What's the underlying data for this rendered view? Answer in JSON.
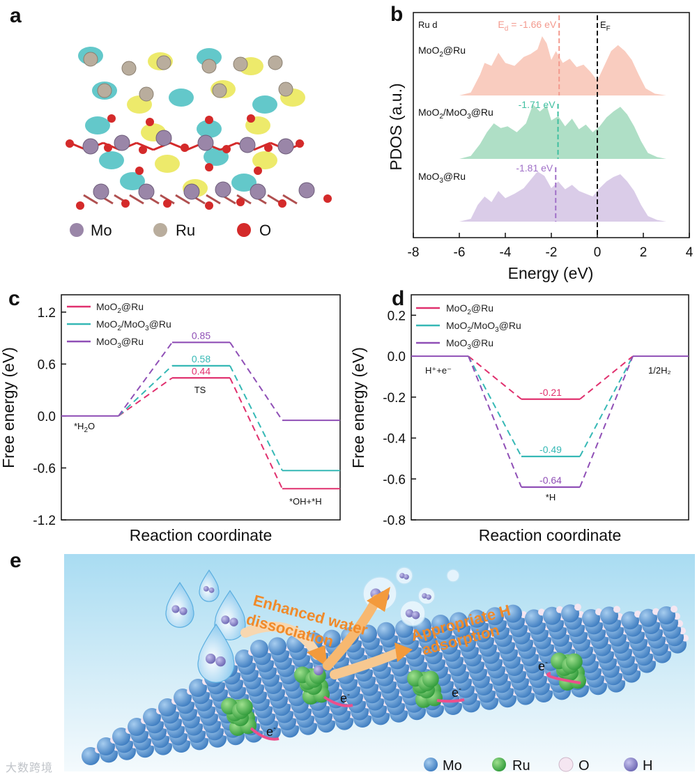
{
  "panel_labels": {
    "a": "a",
    "b": "b",
    "c": "c",
    "d": "d",
    "e": "e"
  },
  "panel_a": {
    "legend": [
      {
        "label": "Mo",
        "color": "#9a86a8"
      },
      {
        "label": "Ru",
        "color": "#b9ad9d"
      },
      {
        "label": "O",
        "color": "#d42a2a"
      }
    ]
  },
  "colors": {
    "moo2_ru": "#e0306e",
    "mixed": "#35b8b5",
    "moo3_ru": "#8f4fb6",
    "moo2_fill": "#f8c7b8",
    "mixed_fill": "#a6dcc0",
    "moo3_fill": "#d6c6e6"
  },
  "panel_e": {
    "text_water": "Enhanced water dissociation",
    "text_water_line1": "Enhanced water",
    "text_water_line2": "dissociation",
    "text_h_line1": "Appropriate H",
    "text_h_line2": "adsorption",
    "electron": "e",
    "legend": [
      {
        "label": "Mo",
        "color": "#4f8fd0"
      },
      {
        "label": "Ru",
        "color": "#3eb34f"
      },
      {
        "label": "O",
        "color": "#f3dfee"
      },
      {
        "label": "H",
        "color": "#8a86c8"
      }
    ]
  },
  "watermark": "大数跨境",
  "chart_data": [
    {
      "id": "b",
      "type": "area",
      "xlabel": "Energy (eV)",
      "ylabel": "PDOS (a.u.)",
      "xlim": [
        -8,
        4
      ],
      "xticks": [
        "-8",
        "-6",
        "-4",
        "-2",
        "0",
        "2",
        "4"
      ],
      "corner_label": "Ru d",
      "fermi_label": "EF",
      "series": [
        {
          "name": "MoO2@Ru",
          "d_band_center": -1.66,
          "center_label": "Ed = -1.66 eV",
          "x": [
            -6,
            -5.5,
            -5.1,
            -4.9,
            -4.6,
            -4.3,
            -4.0,
            -3.6,
            -3.2,
            -2.9,
            -2.6,
            -2.4,
            -2.2,
            -2.0,
            -1.8,
            -1.5,
            -1.2,
            -0.9,
            -0.6,
            -0.3,
            0.0,
            0.3,
            0.6,
            0.9,
            1.2,
            1.5,
            1.8,
            2.1,
            2.5,
            3.0
          ],
          "y": [
            0.0,
            0.05,
            0.35,
            0.55,
            0.5,
            0.72,
            0.55,
            0.5,
            0.65,
            0.7,
            0.78,
            1.0,
            0.88,
            0.6,
            0.75,
            0.55,
            0.62,
            0.48,
            0.52,
            0.4,
            0.25,
            0.5,
            0.75,
            0.85,
            0.75,
            0.6,
            0.35,
            0.12,
            0.03,
            0.0
          ]
        },
        {
          "name": "MoO2/MoO3@Ru",
          "d_band_center": -1.71,
          "center_label": "-1.71 eV",
          "x": [
            -6,
            -5.5,
            -5.1,
            -4.8,
            -4.5,
            -4.2,
            -3.9,
            -3.5,
            -3.1,
            -2.8,
            -2.5,
            -2.2,
            -2.0,
            -1.7,
            -1.4,
            -1.1,
            -0.8,
            -0.5,
            -0.2,
            0.1,
            0.4,
            0.7,
            1.0,
            1.3,
            1.6,
            1.9,
            2.2,
            2.6,
            3.0
          ],
          "y": [
            0.0,
            0.05,
            0.25,
            0.45,
            0.6,
            0.52,
            0.55,
            0.45,
            0.6,
            0.92,
            0.8,
            0.9,
            0.65,
            0.72,
            0.55,
            0.68,
            0.5,
            0.58,
            0.45,
            0.55,
            0.7,
            0.8,
            0.88,
            0.75,
            0.55,
            0.3,
            0.1,
            0.03,
            0.0
          ]
        },
        {
          "name": "MoO3@Ru",
          "d_band_center": -1.81,
          "center_label": "-1.81 eV",
          "x": [
            -6,
            -5.5,
            -5.2,
            -4.9,
            -4.6,
            -4.3,
            -4.0,
            -3.6,
            -3.2,
            -2.9,
            -2.6,
            -2.3,
            -2.0,
            -1.7,
            -1.4,
            -1.1,
            -0.8,
            -0.5,
            -0.2,
            0.1,
            0.4,
            0.7,
            1.0,
            1.3,
            1.6,
            1.9,
            2.2,
            2.6,
            3.0
          ],
          "y": [
            0.0,
            0.05,
            0.3,
            0.45,
            0.35,
            0.55,
            0.42,
            0.5,
            0.6,
            0.75,
            0.9,
            0.82,
            0.6,
            0.72,
            0.58,
            0.66,
            0.55,
            0.5,
            0.45,
            0.6,
            0.72,
            0.8,
            0.85,
            0.72,
            0.55,
            0.3,
            0.1,
            0.03,
            0.0
          ]
        }
      ]
    },
    {
      "id": "c",
      "type": "line",
      "xlabel": "Reaction coordinate",
      "ylabel": "Free energy (eV)",
      "ylim": [
        -1.2,
        1.4
      ],
      "yticks": [
        "1.2",
        "0.6",
        "0.0",
        "-0.6",
        "-1.2"
      ],
      "state_labels": {
        "initial": "*H2O",
        "ts": "TS",
        "final": "*OH+*H"
      },
      "series": [
        {
          "name": "MoO2@Ru",
          "values": [
            0.0,
            0.44,
            -0.84
          ],
          "label": "0.44"
        },
        {
          "name": "MoO2/MoO3@Ru",
          "values": [
            0.0,
            0.58,
            -0.63
          ],
          "label": "0.58"
        },
        {
          "name": "MoO3@Ru",
          "values": [
            0.0,
            0.85,
            -0.05
          ],
          "label": "0.85"
        }
      ]
    },
    {
      "id": "d",
      "type": "line",
      "xlabel": "Reaction coordinate",
      "ylabel": "Free energy (eV)",
      "ylim": [
        -0.8,
        0.3
      ],
      "yticks": [
        "0.2",
        "0.0",
        "-0.2",
        "-0.4",
        "-0.6",
        "-0.8"
      ],
      "state_labels": {
        "initial": "H⁺+e⁻",
        "intermediate": "*H",
        "final": "1/2H₂"
      },
      "series": [
        {
          "name": "MoO2@Ru",
          "values": [
            0.0,
            -0.21,
            0.0
          ],
          "label": "-0.21"
        },
        {
          "name": "MoO2/MoO3@Ru",
          "values": [
            0.0,
            -0.49,
            0.0
          ],
          "label": "-0.49"
        },
        {
          "name": "MoO3@Ru",
          "values": [
            0.0,
            -0.64,
            0.0
          ],
          "label": "-0.64"
        }
      ]
    }
  ]
}
